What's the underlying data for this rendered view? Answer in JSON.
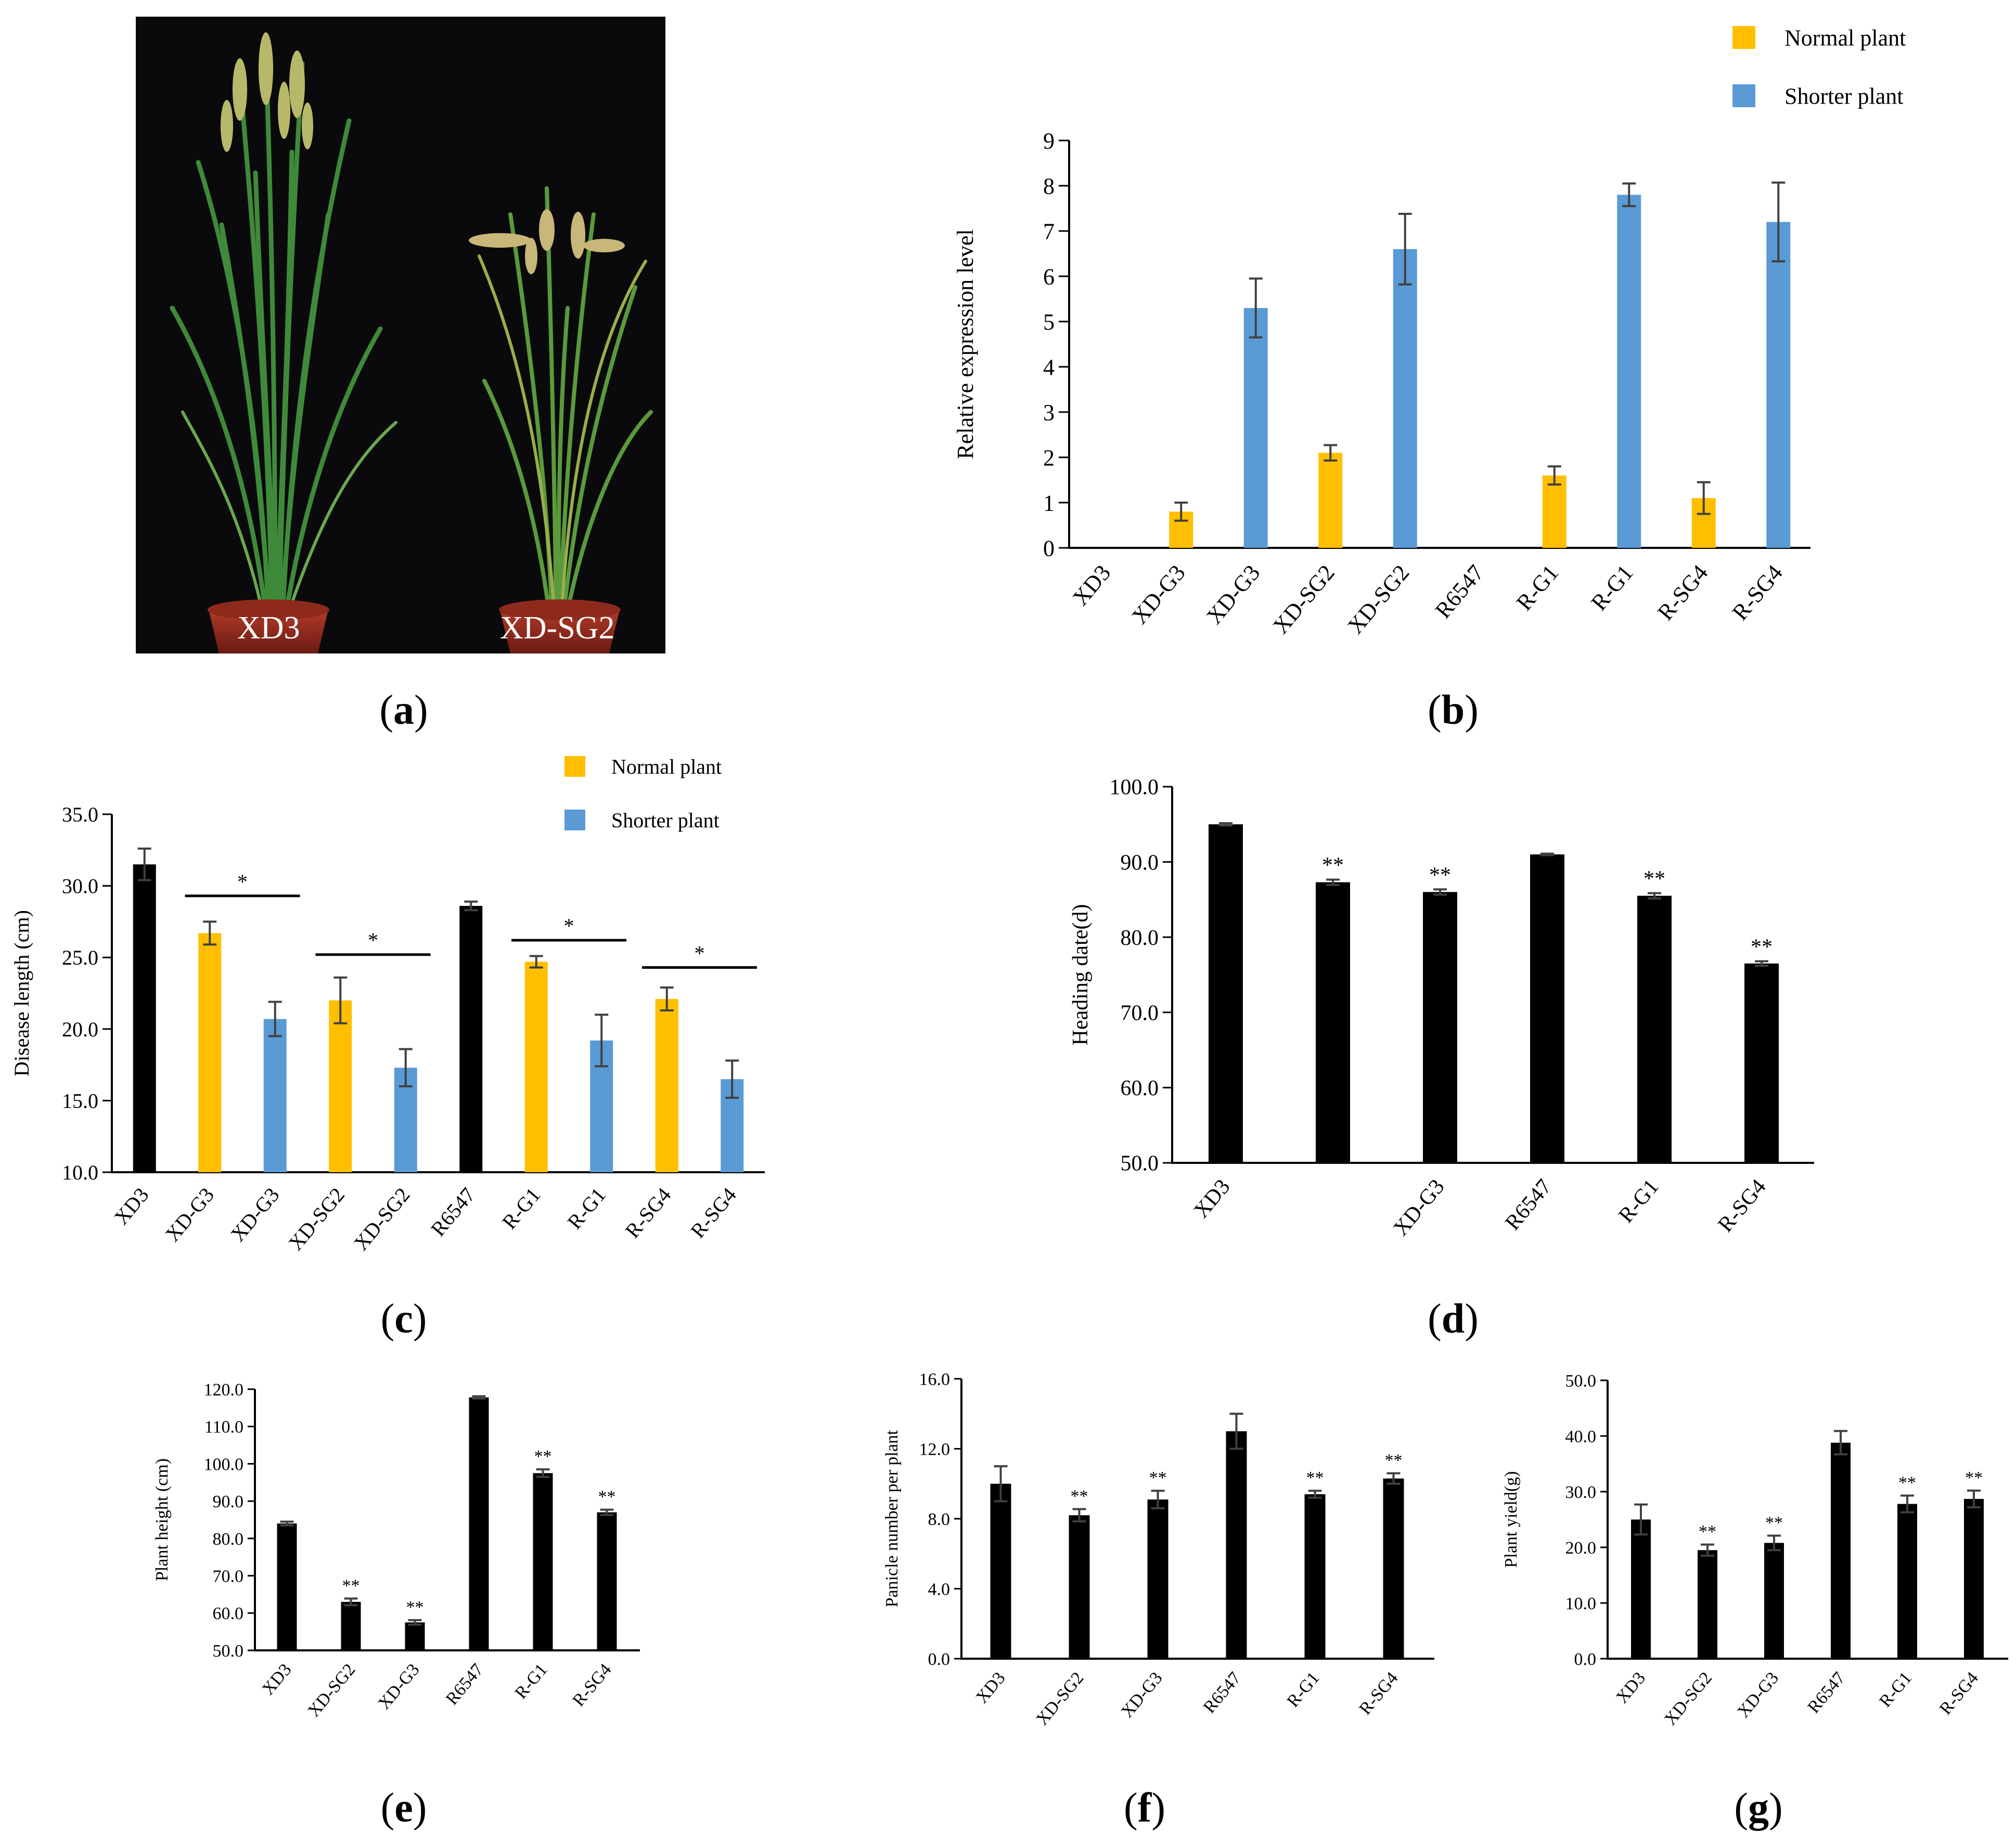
{
  "colors": {
    "normal": "#FFBF00",
    "shorter": "#5B9BD5",
    "black": "#000000",
    "err": "#404040"
  },
  "captions": {
    "a": "a",
    "b": "b",
    "c": "c",
    "d": "d",
    "e": "e",
    "f": "f",
    "g": "g"
  },
  "photo": {
    "label_left": "XD3",
    "label_right": "XD-SG2"
  },
  "charts": {
    "b": {
      "type": "bar",
      "ylabel": "Relative expression level",
      "ylim": [
        0,
        9
      ],
      "yticks": [
        "0",
        "1",
        "2",
        "3",
        "4",
        "5",
        "6",
        "7",
        "8",
        "9"
      ],
      "legend": [
        {
          "name": "Normal plant",
          "color": "normal"
        },
        {
          "name": "Shorter plant",
          "color": "shorter"
        }
      ],
      "categories": [
        "XD3",
        "XD-G3",
        "XD-G3",
        "XD-SG2",
        "XD-SG2",
        "R6547",
        "R-G1",
        "R-G1",
        "R-SG4",
        "R-SG4"
      ],
      "values": [
        0,
        0.8,
        5.3,
        2.1,
        6.6,
        0,
        1.6,
        7.8,
        1.1,
        7.2
      ],
      "errors": [
        0,
        0.2,
        0.65,
        0.17,
        0.78,
        0,
        0.2,
        0.25,
        0.35,
        0.87
      ],
      "colors": [
        "black",
        "normal",
        "shorter",
        "normal",
        "shorter",
        "black",
        "normal",
        "shorter",
        "normal",
        "shorter"
      ],
      "stars": [
        "",
        "",
        "",
        "",
        "",
        "",
        "",
        "",
        "",
        ""
      ]
    },
    "c": {
      "type": "bar",
      "ylabel": "Disease  length  (cm)",
      "ylim": [
        10,
        35
      ],
      "yticks": [
        "10.0",
        "15.0",
        "20.0",
        "25.0",
        "30.0",
        "35.0"
      ],
      "legend": [
        {
          "name": "Normal plant",
          "color": "normal"
        },
        {
          "name": "Shorter plant",
          "color": "shorter"
        }
      ],
      "categories": [
        "XD3",
        "XD-G3",
        "XD-G3",
        "XD-SG2",
        "XD-SG2",
        "R6547",
        "R-G1",
        "R-G1",
        "R-SG4",
        "R-SG4"
      ],
      "values": [
        31.5,
        26.7,
        20.7,
        22.0,
        17.3,
        28.6,
        24.7,
        19.2,
        22.1,
        16.5
      ],
      "errors": [
        1.1,
        0.8,
        1.2,
        1.6,
        1.3,
        0.3,
        0.4,
        1.8,
        0.8,
        1.3
      ],
      "colors": [
        "black",
        "normal",
        "shorter",
        "normal",
        "shorter",
        "black",
        "normal",
        "shorter",
        "normal",
        "shorter"
      ],
      "stars": [
        "",
        "",
        "",
        "",
        "",
        "",
        "",
        "",
        "",
        ""
      ],
      "sig_lines": [
        {
          "from": 1,
          "to": 2,
          "y": 29.3,
          "label": "*"
        },
        {
          "from": 3,
          "to": 4,
          "y": 25.2,
          "label": "*"
        },
        {
          "from": 6,
          "to": 7,
          "y": 26.2,
          "label": "*"
        },
        {
          "from": 8,
          "to": 9,
          "y": 24.3,
          "label": "*"
        }
      ]
    },
    "d": {
      "type": "bar",
      "ylabel": "Heading date(d)",
      "ylim": [
        50,
        100
      ],
      "yticks": [
        "50.0",
        "60.0",
        "70.0",
        "80.0",
        "90.0",
        "100.0"
      ],
      "categories": [
        "XD3",
        "",
        "XD-G3",
        "R6547",
        "R-G1",
        "R-SG4"
      ],
      "values": [
        95.0,
        87.3,
        86.0,
        91.0,
        85.5,
        76.5
      ],
      "errors": [
        0.15,
        0.35,
        0.35,
        0.1,
        0.35,
        0.3
      ],
      "colors": [
        "black",
        "black",
        "black",
        "black",
        "black",
        "black"
      ],
      "stars": [
        "",
        "**",
        "**",
        "",
        "**",
        "**"
      ]
    },
    "e": {
      "type": "bar",
      "ylabel": "Plant height (cm)",
      "ylim": [
        50,
        120
      ],
      "yticks": [
        "50.0",
        "60.0",
        "70.0",
        "80.0",
        "90.0",
        "100.0",
        "110.0",
        "120.0"
      ],
      "categories": [
        "XD3",
        "XD-SG2",
        "XD-G3",
        "R6547",
        "R-G1",
        "R-SG4"
      ],
      "values": [
        84.0,
        63.0,
        57.5,
        117.8,
        97.5,
        87.0
      ],
      "errors": [
        0.5,
        0.9,
        0.6,
        0.3,
        1.0,
        0.7
      ],
      "colors": [
        "black",
        "black",
        "black",
        "black",
        "black",
        "black"
      ],
      "stars": [
        "",
        "**",
        "**",
        "",
        "**",
        "**"
      ]
    },
    "f": {
      "type": "bar",
      "ylabel": "Panicle number per plant",
      "ylim": [
        0,
        16
      ],
      "yticks": [
        "0.0",
        "4.0",
        "8.0",
        "12.0",
        "16.0"
      ],
      "categories": [
        "XD3",
        "XD-SG2",
        "XD-G3",
        "R6547",
        "R-G1",
        "R-SG4"
      ],
      "values": [
        10.0,
        8.2,
        9.1,
        13.0,
        9.4,
        10.3
      ],
      "errors": [
        1.0,
        0.35,
        0.5,
        1.0,
        0.2,
        0.3
      ],
      "colors": [
        "black",
        "black",
        "black",
        "black",
        "black",
        "black"
      ],
      "stars": [
        "",
        "**",
        "**",
        "",
        "**",
        "**"
      ]
    },
    "g": {
      "type": "bar",
      "ylabel": "Plant yield(g)",
      "ylim": [
        0,
        50
      ],
      "yticks": [
        "0.0",
        "10.0",
        "20.0",
        "30.0",
        "40.0",
        "50.0"
      ],
      "categories": [
        "XD3",
        "XD-SG2",
        "XD-G3",
        "R6547",
        "R-G1",
        "R-SG4"
      ],
      "values": [
        25.0,
        19.5,
        20.8,
        38.8,
        27.8,
        28.7
      ],
      "errors": [
        2.7,
        1.0,
        1.3,
        2.1,
        1.5,
        1.5
      ],
      "colors": [
        "black",
        "black",
        "black",
        "black",
        "black",
        "black"
      ],
      "stars": [
        "",
        "**",
        "**",
        "",
        "**",
        "**"
      ]
    }
  }
}
